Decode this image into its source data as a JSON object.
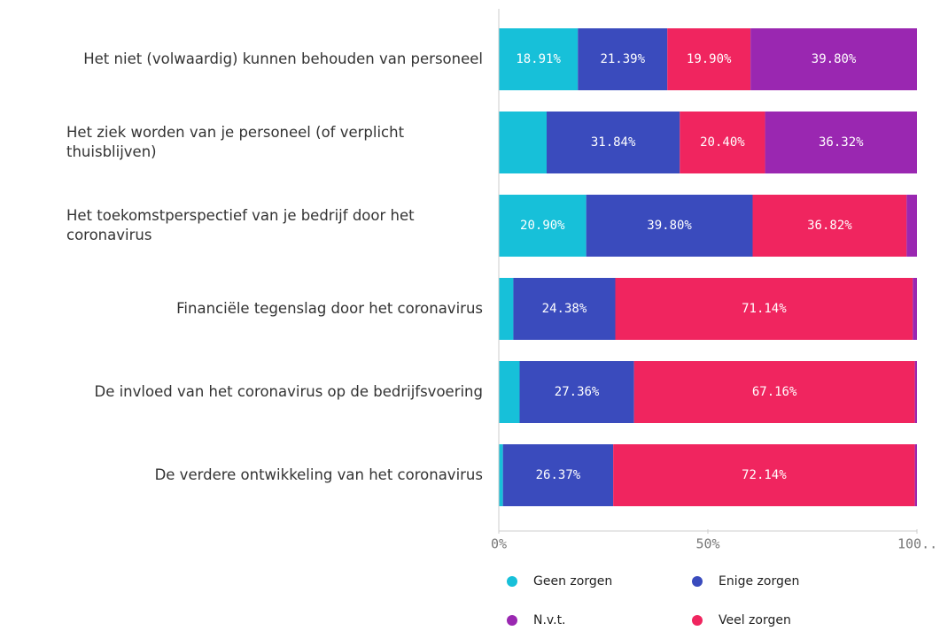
{
  "chart_data": {
    "type": "bar",
    "orientation": "horizontal",
    "stacked": true,
    "categories": [
      "Het niet (volwaardig) kunnen behouden van personeel",
      "Het ziek worden van je personeel (of verplicht thuisblijven)",
      "Het toekomstperspectief van je bedrijf door het coronavirus",
      "Financiële tegenslag door het coronavirus",
      "De invloed van het coronavirus op de bedrijfsvoering",
      "De verdere ontwikkeling van het coronavirus"
    ],
    "series": [
      {
        "name": "Geen zorgen",
        "color": "#17c0d9",
        "values": [
          18.91,
          11.44,
          20.9,
          3.48,
          4.98,
          0.99
        ],
        "value_labels": [
          "18.91%",
          null,
          "20.90%",
          null,
          null,
          null
        ]
      },
      {
        "name": "Enige zorgen",
        "color": "#3a4bbd",
        "values": [
          21.39,
          31.84,
          39.8,
          24.38,
          27.36,
          26.37
        ],
        "value_labels": [
          "21.39%",
          "31.84%",
          "39.80%",
          "24.38%",
          "27.36%",
          "26.37%"
        ]
      },
      {
        "name": "Veel zorgen",
        "color": "#f0255f",
        "values": [
          19.9,
          20.4,
          36.82,
          71.14,
          67.16,
          72.14
        ],
        "value_labels": [
          "19.90%",
          "20.40%",
          "36.82%",
          "71.14%",
          "67.16%",
          "72.14%"
        ]
      },
      {
        "name": "N.v.t.",
        "color": "#9a27b1",
        "values": [
          39.8,
          36.32,
          2.48,
          1.0,
          0.5,
          0.5
        ],
        "value_labels": [
          "39.80%",
          "36.32%",
          null,
          null,
          null,
          null
        ]
      }
    ],
    "xlim": [
      0,
      100
    ],
    "xticks": [
      {
        "value": 0,
        "label": "0%"
      },
      {
        "value": 50,
        "label": "50%"
      },
      {
        "value": 100,
        "label": "100.."
      }
    ],
    "legend": "bottom"
  }
}
